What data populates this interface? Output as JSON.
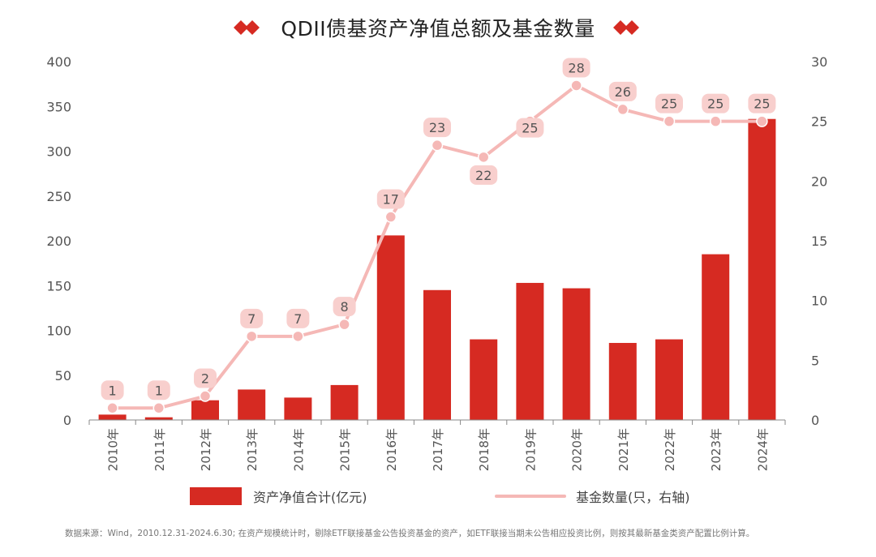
{
  "title": "QDII债基资产净值总额及基金数量",
  "colors": {
    "bar": "#d62a22",
    "line": "#f5b8b6",
    "label_bg": "#f8cfcd",
    "diamond": "#d62a22"
  },
  "legend": {
    "bar_label": "资产净值合计(亿元)",
    "line_label": "基金数量(只，右轴)"
  },
  "source": "数据来源：Wind，2010.12.31-2024.6.30; 在资产规模统计时，剔除ETF联接基金公告投资基金的资产，如ETF联接当期未公告相应投资比例，则按其最新基金类资产配置比例计算。",
  "chart_data": {
    "type": "bar",
    "categories": [
      "2010年",
      "2011年",
      "2012年",
      "2013年",
      "2014年",
      "2015年",
      "2016年",
      "2017年",
      "2018年",
      "2019年",
      "2020年",
      "2021年",
      "2022年",
      "2023年",
      "2024年"
    ],
    "series": [
      {
        "name": "资产净值合计(亿元)",
        "type": "bar",
        "axis": "left",
        "values": [
          6,
          3,
          22,
          34,
          25,
          39,
          206,
          145,
          90,
          153,
          147,
          86,
          90,
          185,
          336
        ]
      },
      {
        "name": "基金数量(只，右轴)",
        "type": "line",
        "axis": "right",
        "values": [
          1,
          1,
          2,
          7,
          7,
          8,
          17,
          23,
          22,
          25,
          28,
          26,
          25,
          25,
          25
        ],
        "labels": [
          "1",
          "1",
          "2",
          "7",
          "7",
          "8",
          "17",
          "23",
          "22",
          "25",
          "28",
          "26",
          "25",
          "25",
          "25"
        ]
      }
    ],
    "y_left": {
      "lim": [
        0,
        400
      ],
      "ticks": [
        "0",
        "50",
        "100",
        "150",
        "200",
        "250",
        "300",
        "350",
        "400"
      ]
    },
    "y_right": {
      "lim": [
        0,
        30
      ],
      "ticks": [
        "0",
        "5",
        "10",
        "15",
        "20",
        "25",
        "30"
      ]
    },
    "grid": false,
    "legend_position": "bottom"
  }
}
